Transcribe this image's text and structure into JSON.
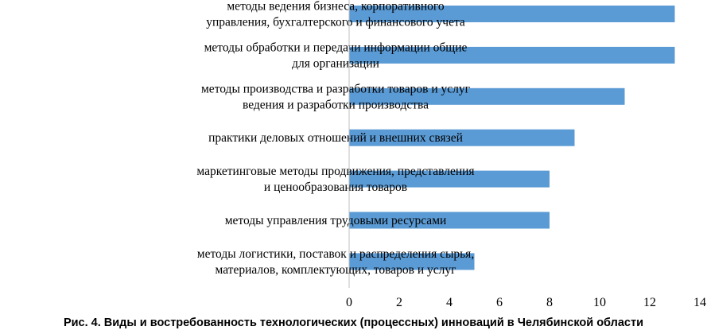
{
  "caption": "Рис. 4. Виды и востребованность технологических (процессных) инноваций в Челябинской области",
  "chart_data": {
    "type": "bar",
    "orientation": "horizontal",
    "categories": [
      [
        "методы ведения бизнеса, корпоративного",
        "управления, бухгалтерского и финансового учета"
      ],
      [
        "методы обработки и передачи информации общие",
        "для организации"
      ],
      [
        "методы производства и разработки товаров и услуг",
        "ведения и разработки производства"
      ],
      [
        "практики деловых отношений и внешних связей"
      ],
      [
        "маркетинговые методы продвижения, представления",
        "и ценообразования товаров"
      ],
      [
        "методы управления трудовыми ресурсами"
      ],
      [
        "методы логистики, поставок и распределения сырья,",
        "материалов, комплектующих, товаров и услуг"
      ]
    ],
    "values": [
      13,
      13,
      11,
      9,
      8,
      8,
      5
    ],
    "xlim": [
      0,
      14
    ],
    "xticks": [
      "0",
      "2",
      "4",
      "6",
      "8",
      "10",
      "12",
      "14"
    ],
    "title": "",
    "xlabel": "",
    "ylabel": "",
    "grid": false,
    "bar_color": "#5b9bd5"
  }
}
